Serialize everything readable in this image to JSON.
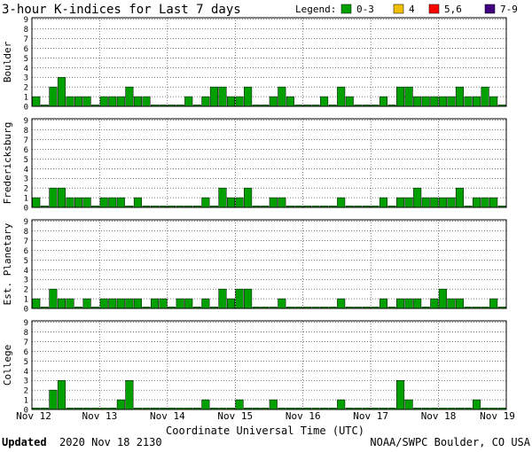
{
  "title": "3-hour K-indices for Last 7 days",
  "legend": {
    "label": "Legend:",
    "items": [
      {
        "label": "0-3",
        "color": "#00a000"
      },
      {
        "label": "4",
        "color": "#f0c000"
      },
      {
        "label": "5,6",
        "color": "#ff0000"
      },
      {
        "label": "7-9",
        "color": "#400080"
      }
    ]
  },
  "footer": {
    "updated_label": "Updated",
    "updated_value": "2020 Nov 18 2130",
    "credit": "NOAA/SWPC Boulder, CO USA"
  },
  "chart_data": [
    {
      "type": "bar",
      "title": "",
      "ylabel": "Boulder",
      "xlabel": "Coordinate Universal Time (UTC)",
      "ylim": [
        0,
        9
      ],
      "yticks": [
        "0",
        "1",
        "2",
        "3",
        "4",
        "5",
        "6",
        "7",
        "8",
        "9"
      ],
      "xticks": [
        "Nov 12",
        "Nov 13",
        "Nov 14",
        "Nov 15",
        "Nov 16",
        "Nov 17",
        "Nov 18",
        "Nov 19"
      ],
      "interval_hours": 3,
      "values": [
        1,
        0,
        2,
        3,
        1,
        1,
        1,
        0,
        1,
        1,
        1,
        2,
        1,
        1,
        0,
        0,
        0,
        0,
        1,
        0,
        1,
        2,
        2,
        1,
        1,
        2,
        0,
        0,
        1,
        2,
        1,
        0,
        0,
        0,
        1,
        0,
        2,
        1,
        0,
        0,
        0,
        1,
        0,
        2,
        2,
        1,
        1,
        1,
        1,
        1,
        2,
        1,
        1,
        2,
        1,
        0
      ]
    },
    {
      "type": "bar",
      "title": "",
      "ylabel": "Fredericksburg",
      "xlabel": "Coordinate Universal Time (UTC)",
      "ylim": [
        0,
        9
      ],
      "yticks": [
        "0",
        "1",
        "2",
        "3",
        "4",
        "5",
        "6",
        "7",
        "8",
        "9"
      ],
      "xticks": [
        "Nov 12",
        "Nov 13",
        "Nov 14",
        "Nov 15",
        "Nov 16",
        "Nov 17",
        "Nov 18",
        "Nov 19"
      ],
      "interval_hours": 3,
      "values": [
        1,
        0,
        2,
        2,
        1,
        1,
        1,
        0,
        1,
        1,
        1,
        0,
        1,
        0,
        0,
        0,
        0,
        0,
        0,
        0,
        1,
        0,
        2,
        1,
        1,
        2,
        0,
        0,
        1,
        1,
        0,
        0,
        0,
        0,
        0,
        0,
        1,
        0,
        0,
        0,
        0,
        1,
        0,
        1,
        1,
        2,
        1,
        1,
        1,
        1,
        2,
        0,
        1,
        1,
        1,
        0
      ]
    },
    {
      "type": "bar",
      "title": "",
      "ylabel": "Est. Planetary",
      "xlabel": "Coordinate Universal Time (UTC)",
      "ylim": [
        0,
        9
      ],
      "yticks": [
        "0",
        "1",
        "2",
        "3",
        "4",
        "5",
        "6",
        "7",
        "8",
        "9"
      ],
      "xticks": [
        "Nov 12",
        "Nov 13",
        "Nov 14",
        "Nov 15",
        "Nov 16",
        "Nov 17",
        "Nov 18",
        "Nov 19"
      ],
      "interval_hours": 3,
      "values": [
        1,
        0,
        2,
        1,
        1,
        0,
        1,
        0,
        1,
        1,
        1,
        1,
        1,
        0,
        1,
        1,
        0,
        1,
        1,
        0,
        1,
        0,
        2,
        1,
        2,
        2,
        0,
        0,
        0,
        1,
        0,
        0,
        0,
        0,
        0,
        0,
        1,
        0,
        0,
        0,
        0,
        1,
        0,
        1,
        1,
        1,
        0,
        1,
        2,
        1,
        1,
        0,
        0,
        0,
        1,
        0
      ]
    },
    {
      "type": "bar",
      "title": "",
      "ylabel": "College",
      "xlabel": "Coordinate Universal Time (UTC)",
      "ylim": [
        0,
        9
      ],
      "yticks": [
        "0",
        "1",
        "2",
        "3",
        "4",
        "5",
        "6",
        "7",
        "8",
        "9"
      ],
      "xticks": [
        "Nov 12",
        "Nov 13",
        "Nov 14",
        "Nov 15",
        "Nov 16",
        "Nov 17",
        "Nov 18",
        "Nov 19"
      ],
      "interval_hours": 3,
      "values": [
        0,
        0,
        2,
        3,
        0,
        0,
        0,
        0,
        0,
        0,
        1,
        3,
        0,
        0,
        0,
        0,
        0,
        0,
        0,
        0,
        1,
        0,
        0,
        0,
        1,
        0,
        0,
        0,
        1,
        0,
        0,
        0,
        0,
        0,
        0,
        0,
        1,
        0,
        0,
        0,
        0,
        0,
        0,
        3,
        1,
        0,
        0,
        0,
        0,
        0,
        0,
        0,
        1,
        0,
        0,
        0
      ]
    }
  ]
}
